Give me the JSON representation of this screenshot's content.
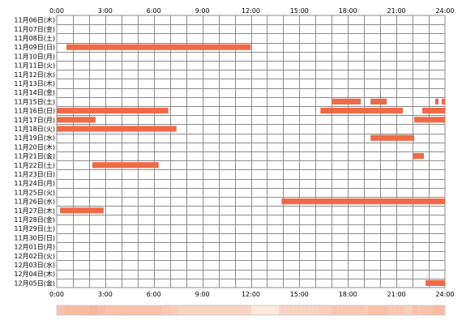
{
  "chart_data": {
    "type": "timeline",
    "x_unit": "hour of day",
    "xlim": [
      0,
      24
    ],
    "x_ticks": [
      "0:00",
      "3:00",
      "6:00",
      "9:00",
      "12:00",
      "15:00",
      "18:00",
      "21:00",
      "24:00"
    ],
    "days": [
      "11月06日(木)",
      "11月07日(金)",
      "11月08日(土)",
      "11月09日(日)",
      "11月10日(月)",
      "11月11日(火)",
      "11月12日(水)",
      "11月13日(木)",
      "11月14日(金)",
      "11月15日(土)",
      "11月16日(日)",
      "11月17日(月)",
      "11月18日(火)",
      "11月19日(水)",
      "11月20日(木)",
      "11月21日(金)",
      "11月22日(土)",
      "11月23日(日)",
      "11月24日(月)",
      "11月25日(火)",
      "11月26日(水)",
      "11月27日(木)",
      "11月28日(金)",
      "11月29日(土)",
      "11月30日(日)",
      "12月01日(月)",
      "12月02日(火)",
      "12月03日(水)",
      "12月04日(木)",
      "12月05日(金)"
    ],
    "intervals": [
      {
        "day": "11月09日(日)",
        "start": 0.6,
        "end": 12.0
      },
      {
        "day": "11月15日(土)",
        "start": 17.0,
        "end": 18.8
      },
      {
        "day": "11月15日(土)",
        "start": 19.4,
        "end": 20.4
      },
      {
        "day": "11月15日(土)",
        "start": 23.4,
        "end": 23.6
      },
      {
        "day": "11月15日(土)",
        "start": 23.8,
        "end": 24.0
      },
      {
        "day": "11月16日(日)",
        "start": 0.0,
        "end": 6.9
      },
      {
        "day": "11月16日(日)",
        "start": 16.3,
        "end": 21.4
      },
      {
        "day": "11月16日(日)",
        "start": 22.6,
        "end": 24.0
      },
      {
        "day": "11月17日(月)",
        "start": 0.0,
        "end": 2.4
      },
      {
        "day": "11月17日(月)",
        "start": 22.1,
        "end": 24.0
      },
      {
        "day": "11月18日(火)",
        "start": 0.0,
        "end": 7.4
      },
      {
        "day": "11月19日(水)",
        "start": 19.4,
        "end": 22.1
      },
      {
        "day": "11月21日(金)",
        "start": 22.0,
        "end": 22.7
      },
      {
        "day": "11月22日(土)",
        "start": 2.2,
        "end": 6.3
      },
      {
        "day": "11月26日(水)",
        "start": 13.9,
        "end": 24.0
      },
      {
        "day": "11月27日(木)",
        "start": 0.2,
        "end": 2.9
      },
      {
        "day": "12月05日(金)",
        "start": 22.8,
        "end": 24.0
      }
    ],
    "colors": {
      "bar": "#f06a48",
      "grid": "#8c8c8c",
      "density_base": "#fde8dc",
      "density_high": "#f8b49c"
    }
  }
}
